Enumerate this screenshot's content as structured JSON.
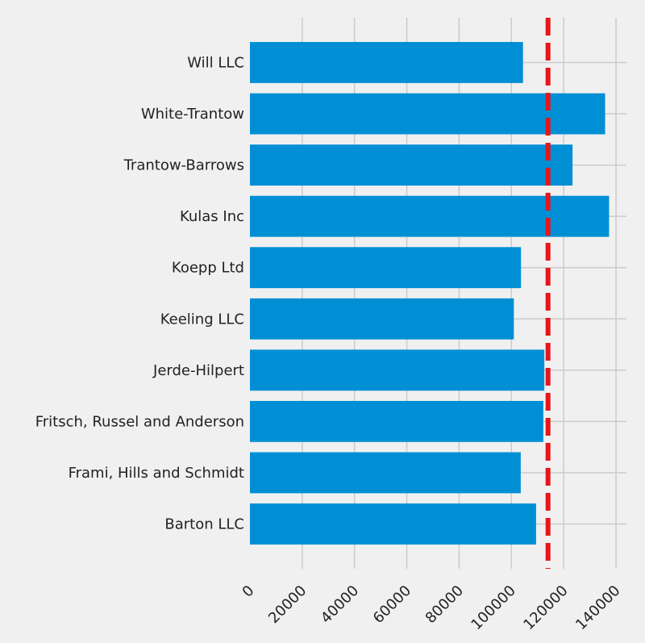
{
  "chart_data": {
    "type": "bar",
    "orientation": "horizontal",
    "categories": [
      "Barton LLC",
      "Frami, Hills and Schmidt",
      "Fritsch, Russel and Anderson",
      "Jerde-Hilpert",
      "Keeling LLC",
      "Koepp Ltd",
      "Kulas Inc",
      "Trantow-Barrows",
      "White-Trantow",
      "Will LLC"
    ],
    "values": [
      109438,
      103569,
      112214,
      112591,
      100934,
      103660,
      137352,
      123381,
      135841,
      104437
    ],
    "xlim": [
      0,
      144000
    ],
    "xticks": [
      0,
      20000,
      40000,
      60000,
      80000,
      100000,
      120000,
      140000
    ],
    "xtick_labels": [
      "0",
      "20000",
      "40000",
      "60000",
      "80000",
      "100000",
      "120000",
      "140000"
    ],
    "xtick_rotation": 45,
    "reference_line": {
      "value": 114000,
      "style": "dashed",
      "color": "#e5161c"
    },
    "bar_color": "#008fd5",
    "grid": true,
    "title": "",
    "xlabel": "",
    "ylabel": ""
  }
}
